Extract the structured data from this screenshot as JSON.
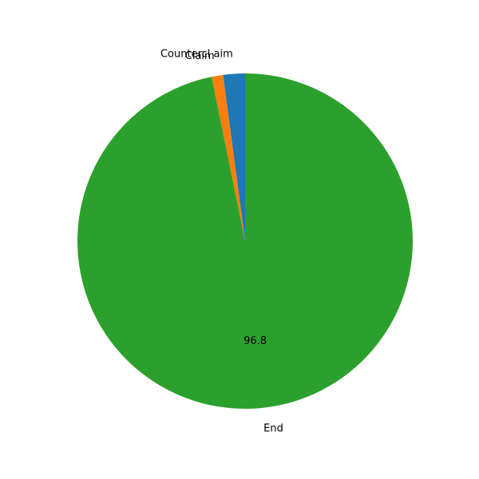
{
  "chart_data": {
    "type": "pie",
    "title": "",
    "start_angle_deg": 90,
    "direction": "counterclockwise",
    "slices": [
      {
        "label": "Countercl aim",
        "value": 2.1,
        "color": "#1f77b4",
        "pct_label": ""
      },
      {
        "label": "Claim",
        "value": 1.1,
        "color": "#ff7f0e",
        "pct_label": ""
      },
      {
        "label": "End",
        "value": 96.8,
        "color": "#2ca02c",
        "pct_label": "96.8"
      }
    ]
  }
}
